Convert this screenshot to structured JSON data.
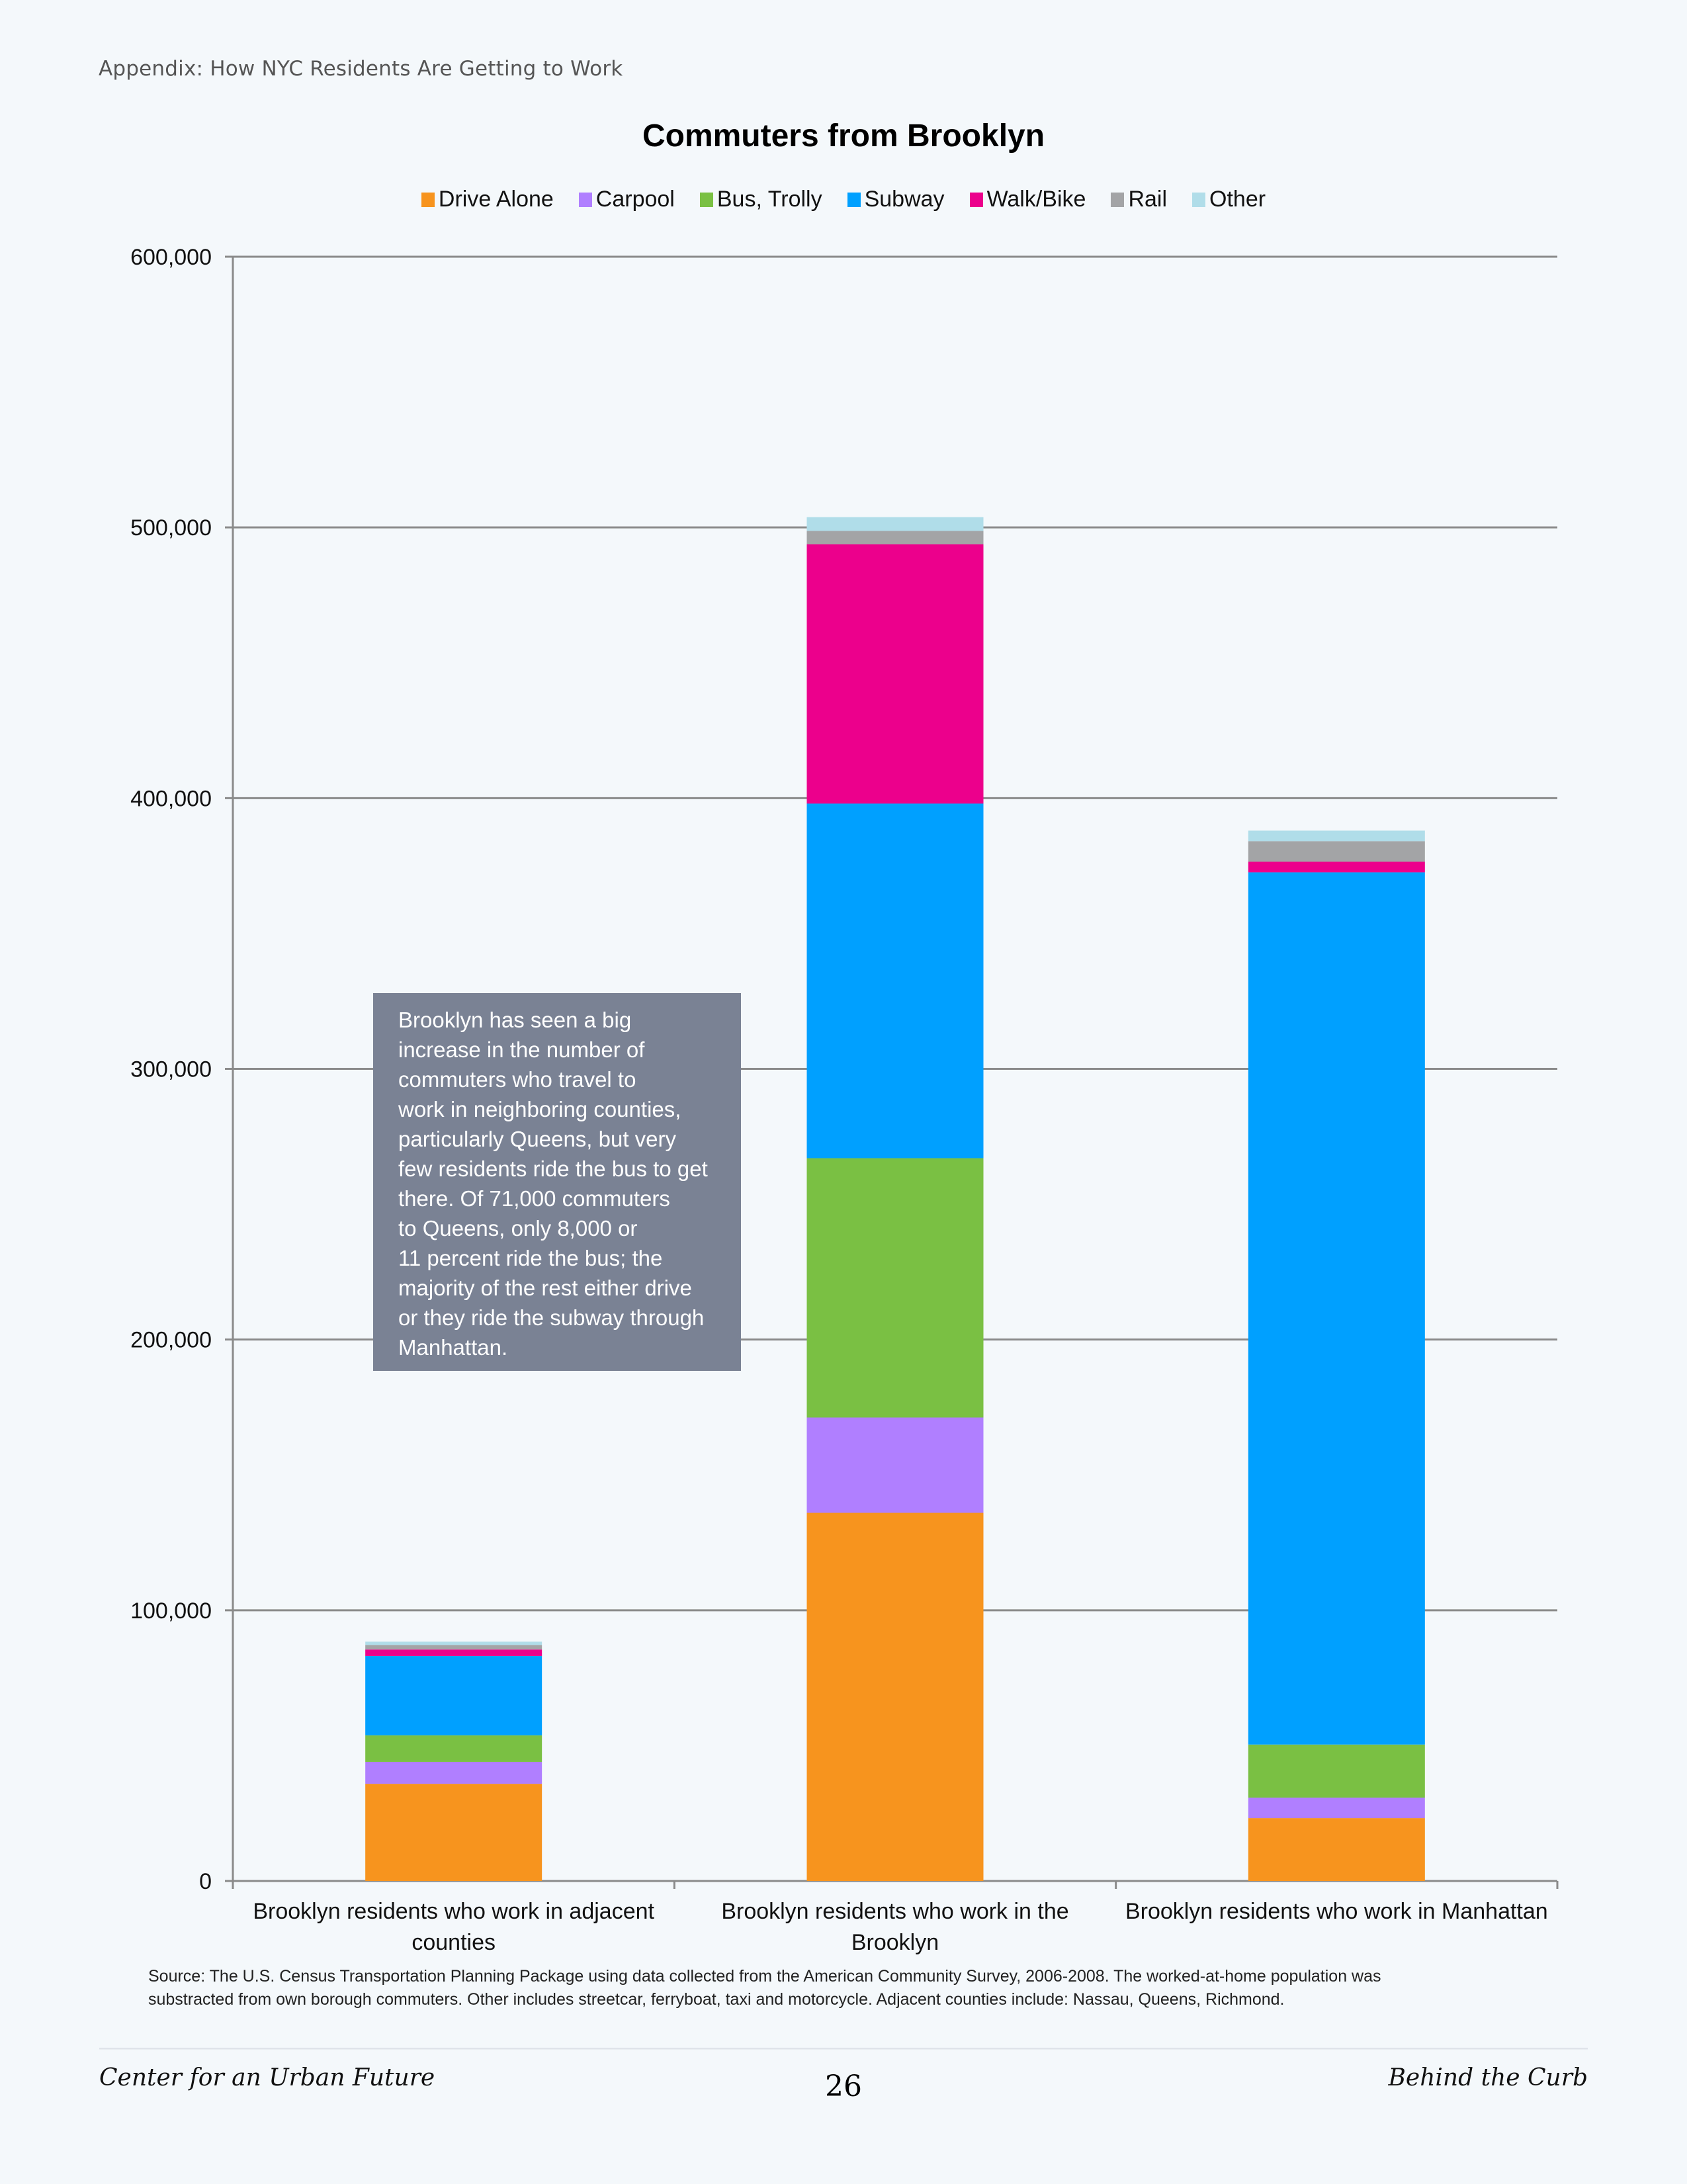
{
  "header": {
    "running_head": "Appendix: How NYC Residents Are Getting to Work"
  },
  "annotation": {
    "lines": [
      "Brooklyn has seen a big",
      "increase in the number of",
      "commuters who travel to",
      "work in neighboring counties,",
      "particularly Queens, but very",
      "few residents ride the bus to get",
      "there. Of 71,000 commuters",
      "to Queens, only 8,000 or",
      "11 percent ride the bus; the",
      "majority of the rest either drive",
      "or they ride the subway through",
      "Manhattan."
    ]
  },
  "source_note": {
    "line1": "Source: The U.S. Census Transportation Planning Package using data collected from the American Community Survey, 2006-2008. The worked-at-home population was",
    "line2": "substracted from own borough commuters. Other includes streetcar, ferryboat, taxi and motorcycle. Adjacent counties include: Nassau, Queens, Richmond."
  },
  "footer": {
    "left": "Center for an Urban Future",
    "page_number": "26",
    "right": "Behind the Curb"
  },
  "chart_data": {
    "type": "bar",
    "stacked": true,
    "title": "Commuters from Brooklyn",
    "xlabel": "",
    "ylabel": "",
    "ylim": [
      0,
      600000
    ],
    "yticks": [
      0,
      100000,
      200000,
      300000,
      400000,
      500000,
      600000
    ],
    "ytick_labels": [
      "0",
      "100,000",
      "200,000",
      "300,000",
      "400,000",
      "500,000",
      "600,000"
    ],
    "grid": true,
    "legend_position": "top",
    "categories": [
      [
        "Brooklyn residents who work in adjacent",
        "counties"
      ],
      [
        "Brooklyn residents who work in the",
        "Brooklyn"
      ],
      [
        "Brooklyn residents who work in Manhattan"
      ]
    ],
    "series": [
      {
        "name": "Drive Alone",
        "color": "#f7941e",
        "values": [
          35900,
          136000,
          23200
        ]
      },
      {
        "name": "Carpool",
        "color": "#b07fff",
        "values": [
          8100,
          35200,
          7600
        ]
      },
      {
        "name": "Bus, Trolly",
        "color": "#7ac043",
        "values": [
          9800,
          95800,
          19600
        ]
      },
      {
        "name": "Subway",
        "color": "#00a0ff",
        "values": [
          29300,
          131000,
          322200
        ]
      },
      {
        "name": "Walk/Bike",
        "color": "#ec008c",
        "values": [
          2400,
          95800,
          3900
        ]
      },
      {
        "name": "Rail",
        "color": "#a3a4a6",
        "values": [
          1700,
          4900,
          7600
        ]
      },
      {
        "name": "Other",
        "color": "#b0dde9",
        "values": [
          1200,
          5100,
          3900
        ]
      }
    ]
  }
}
